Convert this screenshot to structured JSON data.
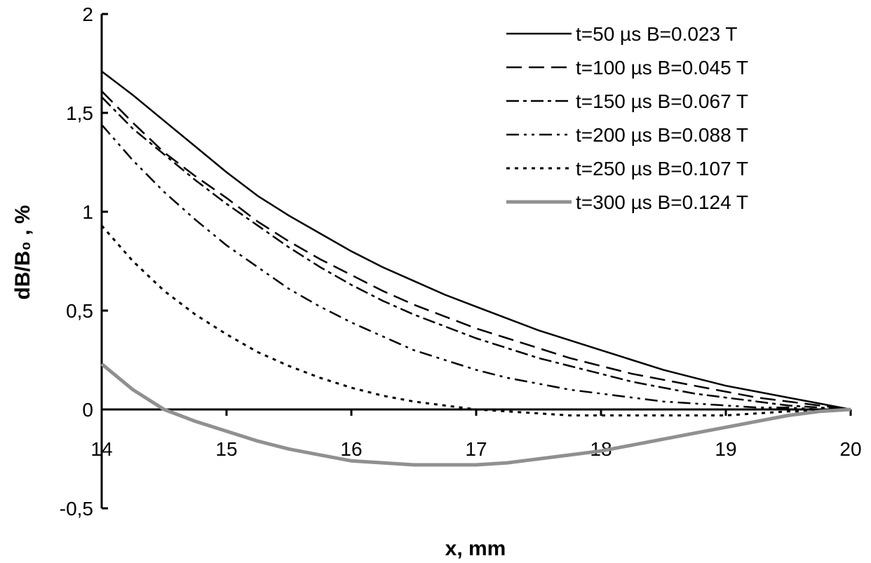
{
  "chart_data": {
    "type": "line",
    "xlabel": "x, mm",
    "ylabel": "dB/B₀ , %",
    "xlim": [
      14,
      20
    ],
    "ylim": [
      -0.5,
      2
    ],
    "xticks": [
      "14",
      "15",
      "16",
      "17",
      "18",
      "19",
      "20"
    ],
    "yticks": [
      "-0,5",
      "0",
      "0,5",
      "1",
      "1,5",
      "2"
    ],
    "ytick_values": [
      -0.5,
      0,
      0.5,
      1,
      1.5,
      2
    ],
    "grid": false,
    "legend_position": "top-right",
    "series": [
      {
        "name": "t=50 µs B=0.023 T",
        "style": "solid",
        "color": "#000000",
        "x": [
          14,
          14.25,
          14.5,
          14.75,
          15,
          15.25,
          15.5,
          15.75,
          16,
          16.25,
          16.5,
          16.75,
          17,
          17.25,
          17.5,
          17.75,
          18,
          18.25,
          18.5,
          18.75,
          19,
          19.25,
          19.5,
          19.75,
          20
        ],
        "values": [
          1.71,
          1.59,
          1.46,
          1.33,
          1.2,
          1.08,
          0.98,
          0.89,
          0.8,
          0.72,
          0.65,
          0.58,
          0.52,
          0.46,
          0.4,
          0.35,
          0.3,
          0.25,
          0.2,
          0.16,
          0.12,
          0.09,
          0.06,
          0.03,
          0
        ]
      },
      {
        "name": "t=100 µs B=0.045 T",
        "style": "long-dash",
        "color": "#000000",
        "x": [
          14,
          14.25,
          14.5,
          14.75,
          15,
          15.25,
          15.5,
          15.75,
          16,
          16.25,
          16.5,
          16.75,
          17,
          17.25,
          17.5,
          17.75,
          18,
          18.25,
          18.5,
          18.75,
          19,
          19.25,
          19.5,
          19.75,
          20
        ],
        "values": [
          1.61,
          1.45,
          1.3,
          1.18,
          1.07,
          0.95,
          0.85,
          0.76,
          0.68,
          0.6,
          0.53,
          0.47,
          0.41,
          0.36,
          0.31,
          0.26,
          0.22,
          0.18,
          0.15,
          0.12,
          0.09,
          0.06,
          0.04,
          0.02,
          0
        ]
      },
      {
        "name": "t=150 µs B=0.067 T",
        "style": "dash-dot",
        "color": "#000000",
        "x": [
          14,
          14.25,
          14.5,
          14.75,
          15,
          15.25,
          15.5,
          15.75,
          16,
          16.25,
          16.5,
          16.75,
          17,
          17.25,
          17.5,
          17.75,
          18,
          18.25,
          18.5,
          18.75,
          19,
          19.25,
          19.5,
          19.75,
          20
        ],
        "values": [
          1.58,
          1.42,
          1.29,
          1.16,
          1.04,
          0.93,
          0.82,
          0.72,
          0.63,
          0.55,
          0.48,
          0.42,
          0.36,
          0.31,
          0.26,
          0.22,
          0.18,
          0.14,
          0.11,
          0.08,
          0.06,
          0.04,
          0.02,
          0.01,
          0
        ]
      },
      {
        "name": "t=200 µs B=0.088 T",
        "style": "dash-dot-dot",
        "color": "#000000",
        "x": [
          14,
          14.25,
          14.5,
          14.75,
          15,
          15.25,
          15.5,
          15.75,
          16,
          16.25,
          16.5,
          16.75,
          17,
          17.25,
          17.5,
          17.75,
          18,
          18.25,
          18.5,
          18.75,
          19,
          19.25,
          19.5,
          19.75,
          20
        ],
        "values": [
          1.44,
          1.26,
          1.1,
          0.96,
          0.83,
          0.72,
          0.61,
          0.52,
          0.44,
          0.37,
          0.3,
          0.25,
          0.2,
          0.16,
          0.13,
          0.1,
          0.08,
          0.06,
          0.04,
          0.03,
          0.02,
          0.01,
          0.01,
          0,
          0
        ]
      },
      {
        "name": "t=250 µs B=0.107 T",
        "style": "short-dash",
        "color": "#000000",
        "x": [
          14,
          14.25,
          14.5,
          14.75,
          15,
          15.25,
          15.5,
          15.75,
          16,
          16.25,
          16.5,
          16.75,
          17,
          17.25,
          17.5,
          17.75,
          18,
          18.25,
          18.5,
          18.75,
          19,
          19.25,
          19.5,
          19.75,
          20
        ],
        "values": [
          0.93,
          0.75,
          0.6,
          0.48,
          0.38,
          0.29,
          0.22,
          0.16,
          0.11,
          0.07,
          0.04,
          0.02,
          0.0,
          -0.01,
          -0.02,
          -0.03,
          -0.03,
          -0.03,
          -0.03,
          -0.03,
          -0.03,
          -0.02,
          -0.01,
          -0.01,
          0
        ]
      },
      {
        "name": "t=300 µs B=0.124 T",
        "style": "thick-gray",
        "color": "#909090",
        "x": [
          14,
          14.25,
          14.5,
          14.75,
          15,
          15.25,
          15.5,
          15.75,
          16,
          16.25,
          16.5,
          16.75,
          17,
          17.25,
          17.5,
          17.75,
          18,
          18.25,
          18.5,
          18.75,
          19,
          19.25,
          19.5,
          19.75,
          20
        ],
        "values": [
          0.23,
          0.1,
          0.0,
          -0.06,
          -0.11,
          -0.16,
          -0.2,
          -0.23,
          -0.26,
          -0.27,
          -0.28,
          -0.28,
          -0.28,
          -0.27,
          -0.25,
          -0.23,
          -0.21,
          -0.18,
          -0.15,
          -0.12,
          -0.09,
          -0.06,
          -0.03,
          -0.01,
          0
        ]
      }
    ]
  }
}
